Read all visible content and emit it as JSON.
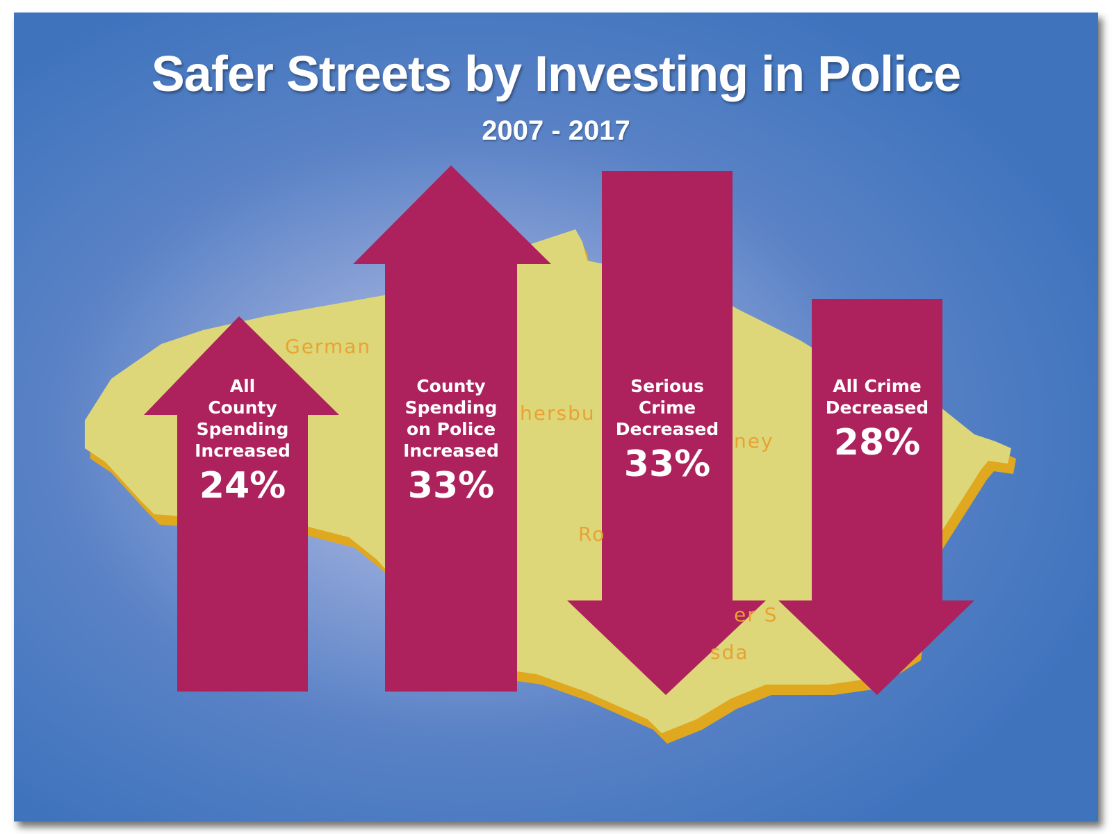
{
  "title": "Safer Streets by Investing in Police",
  "subtitle": "2007 - 2017",
  "colors": {
    "background": "#3f74bd",
    "arrow": "#ad215c",
    "map": "#ddd77a",
    "map_edge": "#e0a81f",
    "text": "#ffffff",
    "map_label": "#e8a233"
  },
  "map_labels": [
    "German",
    "hersbu",
    "ney",
    "Ro",
    "er S",
    "sda"
  ],
  "arrows": [
    {
      "direction": "up",
      "label": "All\nCounty\nSpending\nIncreased",
      "value": "24%"
    },
    {
      "direction": "up",
      "label": "County\nSpending\non Police\nIncreased",
      "value": "33%"
    },
    {
      "direction": "down",
      "label": "Serious\nCrime\nDecreased",
      "value": "33%"
    },
    {
      "direction": "down",
      "label": "All Crime\nDecreased",
      "value": "28%"
    }
  ]
}
